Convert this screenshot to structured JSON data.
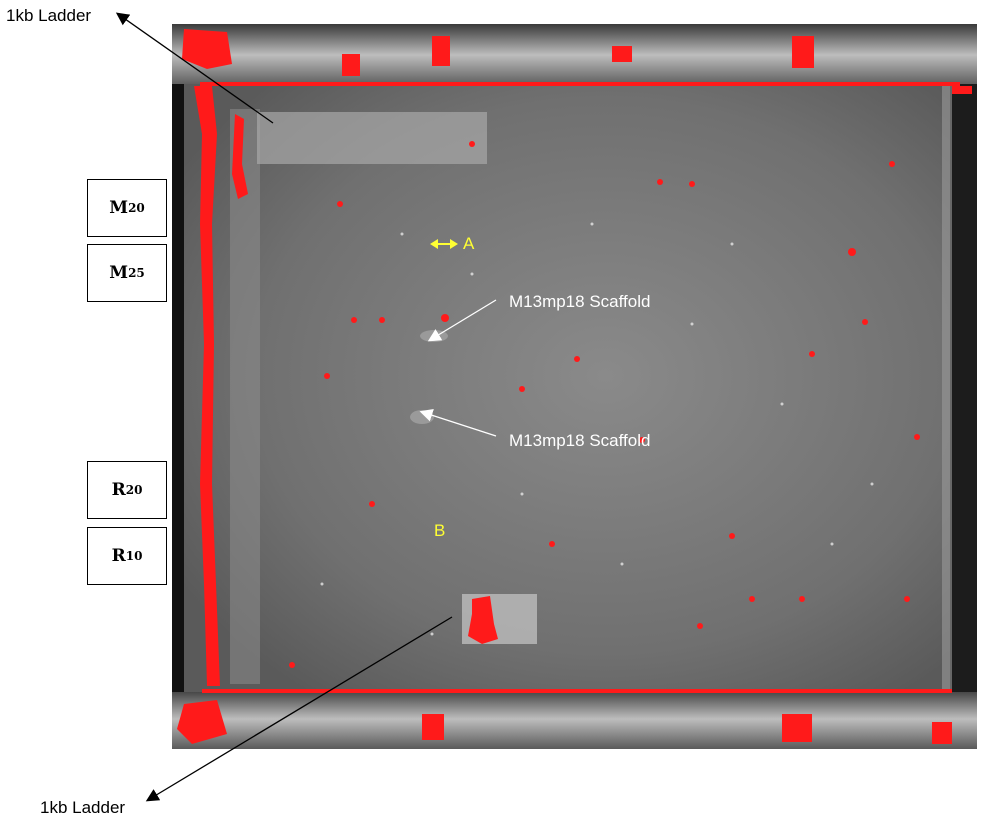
{
  "labels": {
    "ladder_top": "1kb Ladder",
    "ladder_bottom": "1kb Ladder",
    "scaffold_1": "M13mp18 Scaffold",
    "scaffold_2": "M13mp18 Scaffold",
    "marker_a": "A",
    "marker_b": "B"
  },
  "lanes": [
    {
      "letter": "M",
      "sub": "20"
    },
    {
      "letter": "M",
      "sub": "25"
    },
    {
      "letter": "R",
      "sub": "20"
    },
    {
      "letter": "R",
      "sub": "10"
    }
  ],
  "colors": {
    "gel_background": "#6e6e6e",
    "saturation_red": "#ff1a1a",
    "marker_yellow": "#ffff33",
    "annotation_white": "#ffffff"
  }
}
